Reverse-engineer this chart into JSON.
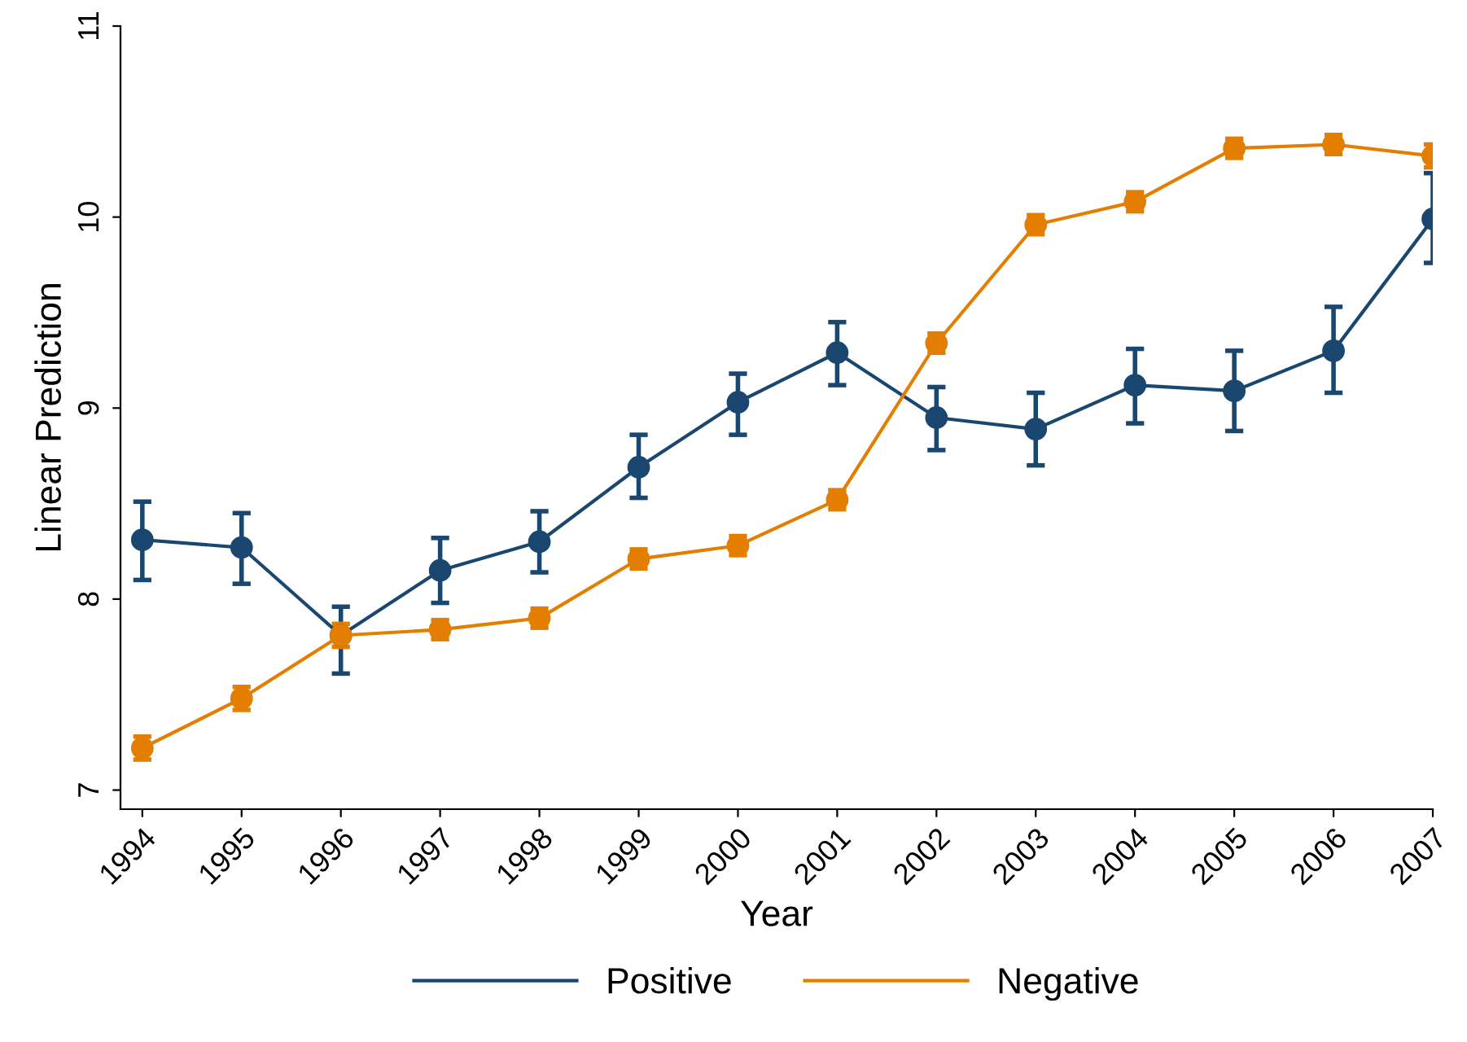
{
  "chart_data": {
    "type": "line",
    "xlabel": "Year",
    "ylabel": "Linear Prediction",
    "x": [
      1994,
      1995,
      1996,
      1997,
      1998,
      1999,
      2000,
      2001,
      2002,
      2003,
      2004,
      2005,
      2006,
      2007
    ],
    "series": [
      {
        "name": "Positive",
        "color": "#1a476f",
        "values": [
          8.31,
          8.27,
          7.81,
          8.15,
          8.3,
          8.69,
          9.03,
          9.29,
          8.95,
          8.89,
          9.12,
          9.09,
          9.3,
          9.99
        ],
        "errors": [
          [
            8.1,
            8.51
          ],
          [
            8.08,
            8.45
          ],
          [
            7.61,
            7.96
          ],
          [
            7.98,
            8.32
          ],
          [
            8.14,
            8.46
          ],
          [
            8.53,
            8.86
          ],
          [
            8.86,
            9.18
          ],
          [
            9.12,
            9.45
          ],
          [
            8.78,
            9.11
          ],
          [
            8.7,
            9.08
          ],
          [
            8.92,
            9.31
          ],
          [
            8.88,
            9.3
          ],
          [
            9.08,
            9.53
          ],
          [
            9.76,
            10.23
          ]
        ]
      },
      {
        "name": "Negative",
        "color": "#e37e00",
        "values": [
          7.22,
          7.48,
          7.81,
          7.84,
          7.9,
          8.21,
          8.28,
          8.52,
          9.34,
          9.96,
          10.08,
          10.36,
          10.38,
          10.32
        ],
        "errors": [
          0.06,
          0.06,
          0.06,
          0.05,
          0.05,
          0.05,
          0.05,
          0.05,
          0.05,
          0.05,
          0.05,
          0.05,
          0.05,
          0.06
        ]
      }
    ],
    "xlim": [
      1993.78,
      2007
    ],
    "xticks": [
      1994,
      1995,
      1996,
      1997,
      1998,
      1999,
      2000,
      2001,
      2002,
      2003,
      2004,
      2005,
      2006,
      2007
    ],
    "ylim": [
      6.9,
      11
    ],
    "yticks": [
      7,
      8,
      9,
      10,
      11
    ],
    "marker": "circle",
    "line_style": "solid",
    "grid": false,
    "legend": "bottom"
  }
}
